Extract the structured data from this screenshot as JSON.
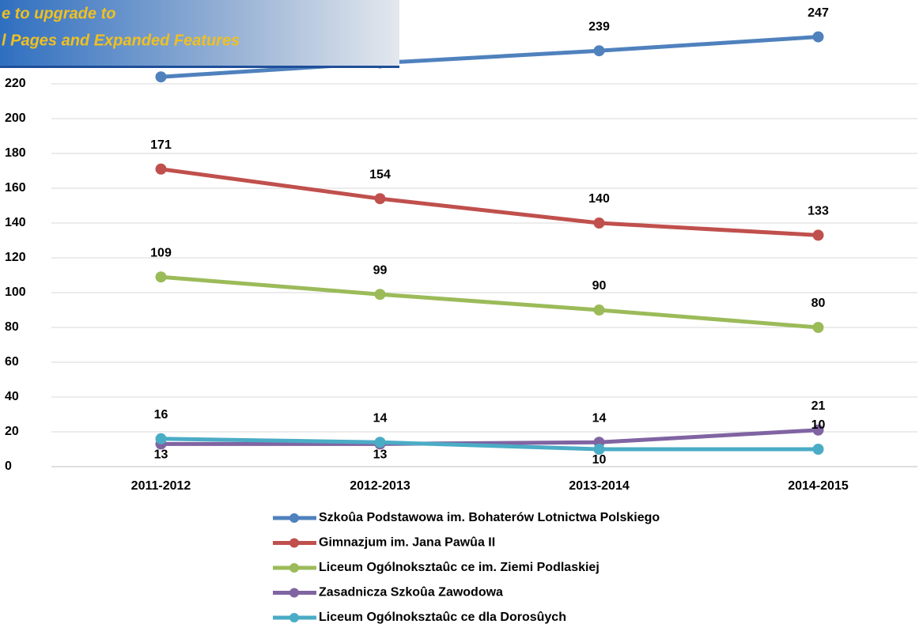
{
  "chart_data": {
    "type": "line",
    "categories": [
      "2011-2012",
      "2012-2013",
      "2013-2014",
      "2014-2015"
    ],
    "series": [
      {
        "name": "Szkoûa Podstawowa im. Bohaterów Lotnictwa Polskiego",
        "color": "#4f81bd",
        "values": [
          224,
          232,
          239,
          247
        ]
      },
      {
        "name": "Gimnazjum im. Jana Pawûa II",
        "color": "#c0504d",
        "values": [
          171,
          154,
          140,
          133
        ]
      },
      {
        "name": "Liceum Ogólnoksztaûc ce im. Ziemi Podlaskiej",
        "color": "#9bbb59",
        "values": [
          109,
          99,
          90,
          80
        ]
      },
      {
        "name": "Zasadnicza Szkoûa Zawodowa",
        "color": "#8064a2",
        "values": [
          13,
          13,
          14,
          21
        ]
      },
      {
        "name": "Liceum Ogólnoksztaûc ce dla Dorosûych",
        "color": "#4bacc6",
        "values": [
          16,
          14,
          10,
          10
        ]
      }
    ],
    "ylim": [
      0,
      260
    ],
    "yticks": [
      0,
      20,
      40,
      60,
      80,
      100,
      120,
      140,
      160,
      180,
      200,
      220
    ],
    "grid": true,
    "legend": "bottom",
    "watermark": [
      "e to upgrade to",
      "l Pages and Expanded Features"
    ]
  }
}
